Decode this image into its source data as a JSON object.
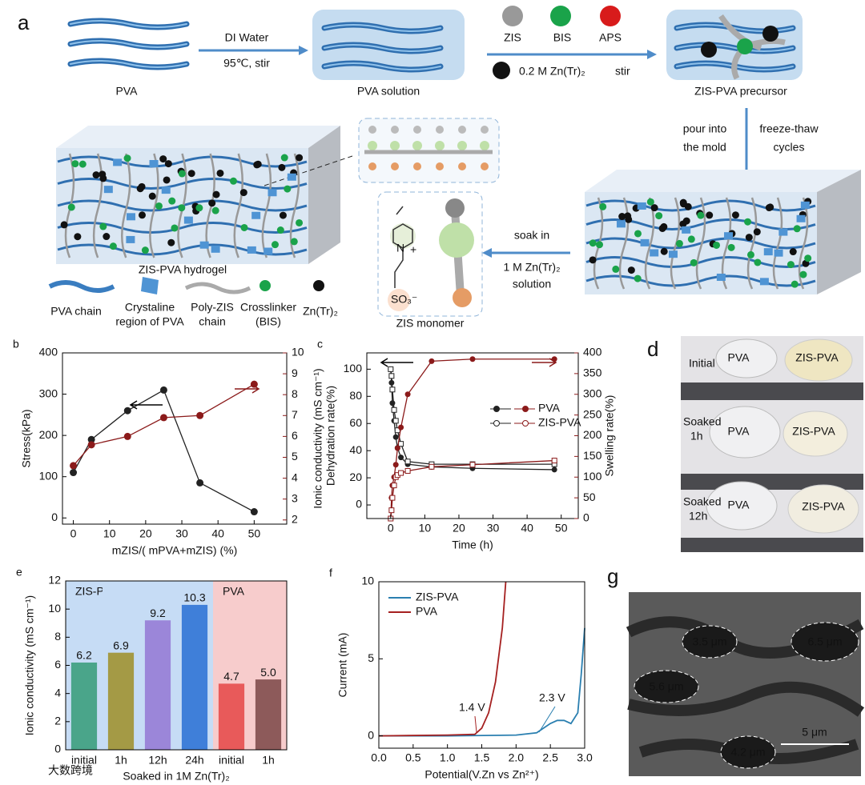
{
  "diagram": {
    "panel": "a",
    "pva": "PVA",
    "step1_top": "DI Water",
    "step1_bottom": "95℃, stir",
    "pva_solution": "PVA solution",
    "zis": "ZIS",
    "bis": "BIS",
    "aps": "APS",
    "zntr": "0.2 M Zn(Tr)₂",
    "stir": "stir",
    "precursor": "ZIS-PVA  precursor",
    "pour": [
      "pour into",
      "the mold"
    ],
    "freeze": [
      "freeze-thaw",
      "cycles"
    ],
    "soak": [
      "soak in",
      "1 M Zn(Tr)₂",
      "solution"
    ],
    "hydrogel": "ZIS-PVA hydrogel",
    "monomer": "ZIS monomer",
    "so3": "SO₃⁻",
    "plus": "+",
    "n": "N",
    "legend": [
      [
        "PVA chain"
      ],
      [
        "Crystaline",
        "region of PVA"
      ],
      [
        "Poly-ZIS",
        "chain"
      ],
      [
        "Crosslinker",
        "(BIS)"
      ],
      [
        "Zn(Tr)₂"
      ]
    ]
  },
  "photo_d": {
    "panel": "d",
    "rows": [
      [
        "Initial"
      ],
      [
        "Soaked",
        "1h"
      ],
      [
        "Soaked",
        "12h"
      ]
    ],
    "labels": [
      "PVA",
      "ZIS-PVA"
    ]
  },
  "photo_g": {
    "panel": "g",
    "pores": [
      "3.5 μm",
      "6.5 μm",
      "5.6 μm",
      "4.2 μm"
    ],
    "scale": "5 μm"
  },
  "watermark": "大数跨境",
  "chart_data": [
    {
      "type": "line",
      "panel": "b",
      "xlabel": "mZIS/( mPVA+mZIS)  (%)",
      "ylabel": "Stress(kPa)",
      "y2label": "Ionic conductivity (mS cm⁻¹)",
      "y2color": "#8b1a1a",
      "x": [
        0,
        5,
        15,
        25,
        35,
        50
      ],
      "xlim": [
        -3,
        59
      ],
      "xticks": [
        0,
        10,
        20,
        30,
        40,
        50
      ],
      "ylim": [
        -15,
        400
      ],
      "yticks": [
        0,
        100,
        200,
        300,
        400
      ],
      "y2lim": [
        1.8,
        10
      ],
      "y2ticks": [
        2,
        3,
        4,
        5,
        6,
        7,
        8,
        9,
        10
      ],
      "series": [
        {
          "color": "#222222",
          "marker": "filled",
          "values": [
            110,
            190,
            260,
            310,
            85,
            15
          ]
        },
        {
          "color": "#8b1a1a",
          "marker": "filled",
          "axis": "y2",
          "values": [
            4.6,
            5.6,
            6.0,
            6.9,
            7.0,
            8.5
          ]
        }
      ]
    },
    {
      "type": "line",
      "panel": "c",
      "xlabel": "Time (h)",
      "ylabel": "Dehydration rate(%)",
      "y2label": "Swelling rate(%)",
      "y2color": "#8b1a1a",
      "x": [
        0,
        0.25,
        0.5,
        1,
        1.5,
        2,
        3,
        5,
        12,
        24,
        48
      ],
      "xlim": [
        -7,
        55
      ],
      "xticks": [
        0,
        10,
        20,
        30,
        40,
        50
      ],
      "ylim": [
        -10,
        112
      ],
      "yticks": [
        0,
        20,
        40,
        60,
        80,
        100
      ],
      "y2lim": [
        0,
        400
      ],
      "y2ticks": [
        0,
        50,
        100,
        150,
        200,
        250,
        300,
        350,
        400
      ],
      "legend": [
        "PVA",
        "ZIS-PVA"
      ],
      "series": [
        {
          "color": "#222222",
          "marker": "filled",
          "values": [
            100,
            90,
            75,
            62,
            50,
            42,
            35,
            30,
            28,
            27,
            26
          ]
        },
        {
          "color": "#222222",
          "marker": "open",
          "values": [
            100,
            95,
            85,
            70,
            62,
            55,
            45,
            32,
            30,
            30,
            30
          ]
        },
        {
          "color": "#8b1a1a",
          "marker": "filled",
          "axis": "y2",
          "values": [
            0,
            50,
            80,
            100,
            130,
            170,
            220,
            300,
            380,
            385,
            385
          ]
        },
        {
          "color": "#8b1a1a",
          "marker": "open",
          "axis": "y2",
          "values": [
            0,
            20,
            50,
            80,
            100,
            105,
            110,
            115,
            125,
            130,
            140
          ]
        }
      ]
    },
    {
      "type": "bar",
      "panel": "e",
      "xlabel": "Soaked in 1M Zn(Tr)₂",
      "ylabel": "Ionic conductivity (mS cm⁻¹)",
      "categories": [
        "initial",
        "1h",
        "12h",
        "24h",
        "initial",
        "1h"
      ],
      "values": [
        6.2,
        6.9,
        9.2,
        10.3,
        4.7,
        5.0
      ],
      "value_labels": [
        "6.2",
        "6.9",
        "9.2",
        "10.3",
        "4.7",
        "5.0"
      ],
      "colors": [
        "#4aa58a",
        "#a49a45",
        "#9b86d9",
        "#3f7fd9",
        "#e85a5a",
        "#8d5a5a"
      ],
      "group": [
        "ZIS-PVA",
        "ZIS-PVA",
        "ZIS-PVA",
        "ZIS-PVA",
        "PVA",
        "PVA"
      ],
      "group_colors": {
        "ZIS-PVA": "#c6dcf5",
        "PVA": "#f7cccc"
      },
      "ylim": [
        0,
        12
      ],
      "yticks": [
        0,
        2,
        4,
        6,
        8,
        10,
        12
      ]
    },
    {
      "type": "line",
      "panel": "f",
      "xlabel": "Potential(V.Zn vs Zn²⁺)",
      "ylabel": "Current (mA)",
      "xlim": [
        0,
        3
      ],
      "xticks": [
        {
          "value": 0,
          "label": "0.0"
        },
        {
          "value": 0.5,
          "label": "0.5"
        },
        {
          "value": 1,
          "label": "1.0"
        },
        {
          "value": 1.5,
          "label": "1.5"
        },
        {
          "value": 2,
          "label": "2.0"
        },
        {
          "value": 2.5,
          "label": "2.5"
        },
        {
          "value": 3,
          "label": "3.0"
        }
      ],
      "ylim": [
        -0.8,
        10
      ],
      "yticks": [
        0,
        5,
        10
      ],
      "annotations": [
        "1.4 V",
        "2.3 V"
      ],
      "series": [
        {
          "name": "ZIS-PVA",
          "color": "#2a7fb0",
          "x": [
            0,
            1,
            2,
            2.3,
            2.5,
            2.6,
            2.7,
            2.8,
            2.9,
            2.95,
            3.0
          ],
          "values": [
            0,
            0,
            0.05,
            0.2,
            0.8,
            1.0,
            1.0,
            0.8,
            1.5,
            4,
            7
          ]
        },
        {
          "name": "PVA",
          "color": "#a52020",
          "x": [
            0,
            1,
            1.4,
            1.5,
            1.6,
            1.7,
            1.8,
            1.85
          ],
          "values": [
            0,
            0.05,
            0.1,
            0.5,
            1.5,
            3.5,
            7,
            10
          ]
        }
      ]
    }
  ]
}
